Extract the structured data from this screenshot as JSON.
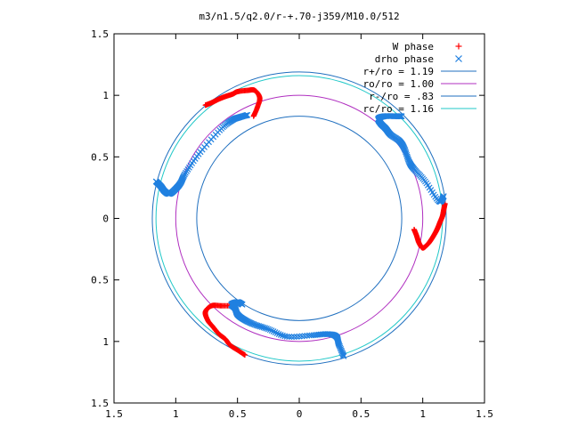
{
  "chart_data": {
    "type": "scatter",
    "title": "m3/n1.5/q2.0/r-+.70-j359/M10.0/512",
    "xlabel": "",
    "ylabel": "",
    "xlim": [
      -1.5,
      1.5
    ],
    "ylim": [
      -1.5,
      1.5
    ],
    "x_ticks": [
      -1.5,
      -1,
      -0.5,
      0,
      0.5,
      1,
      1.5
    ],
    "y_ticks": [
      -1.5,
      -1,
      -0.5,
      0,
      0.5,
      1,
      1.5
    ],
    "x_tick_labels": [
      "1.5",
      "1",
      "0.5",
      "0",
      "0.5",
      "1",
      "1.5"
    ],
    "y_tick_labels": [
      "1.5",
      "1",
      "0.5",
      "0",
      "0.5",
      "1",
      "1.5"
    ],
    "grid": false,
    "legend_position": "top-right",
    "circles": [
      {
        "name": "r+/ro = 1.19",
        "r": 1.19,
        "color": "#1f6fbf"
      },
      {
        "name": "ro/ro = 1.00",
        "r": 1.0,
        "color": "#b02fc0"
      },
      {
        "name": "r-/ro = .83",
        "r": 0.83,
        "color": "#1f6fbf"
      },
      {
        "name": "rc/ro = 1.16",
        "r": 1.16,
        "color": "#20c8c8"
      }
    ],
    "series": [
      {
        "name": "W phase",
        "marker": "plus",
        "color": "#ff0000",
        "arms": [
          {
            "phase_deg": 0,
            "points": [
              [
                1.18,
                0.12
              ],
              [
                1.17,
                0.07
              ],
              [
                1.16,
                0.02
              ],
              [
                1.14,
                -0.03
              ],
              [
                1.12,
                -0.08
              ],
              [
                1.1,
                -0.12
              ],
              [
                1.07,
                -0.17
              ],
              [
                1.04,
                -0.21
              ],
              [
                1.0,
                -0.24
              ],
              [
                0.97,
                -0.2
              ],
              [
                0.95,
                -0.14
              ],
              [
                0.93,
                -0.09
              ]
            ]
          },
          {
            "phase_deg": 120,
            "points": [
              [
                -0.76,
                0.92
              ],
              [
                -0.71,
                0.94
              ],
              [
                -0.65,
                0.97
              ],
              [
                -0.6,
                0.99
              ],
              [
                -0.54,
                1.01
              ],
              [
                -0.5,
                1.03
              ],
              [
                -0.42,
                1.04
              ],
              [
                -0.36,
                1.04
              ],
              [
                -0.32,
                0.98
              ],
              [
                -0.34,
                0.9
              ],
              [
                -0.37,
                0.83
              ]
            ]
          },
          {
            "phase_deg": 240,
            "points": [
              [
                -0.44,
                -1.11
              ],
              [
                -0.5,
                -1.07
              ],
              [
                -0.56,
                -1.03
              ],
              [
                -0.6,
                -0.98
              ],
              [
                -0.65,
                -0.94
              ],
              [
                -0.7,
                -0.88
              ],
              [
                -0.74,
                -0.83
              ],
              [
                -0.76,
                -0.76
              ],
              [
                -0.71,
                -0.71
              ],
              [
                -0.63,
                -0.71
              ],
              [
                -0.54,
                -0.71
              ]
            ]
          }
        ]
      },
      {
        "name": "drho phase",
        "marker": "cross",
        "color": "#2080e0",
        "arms": [
          {
            "phase_deg": 0,
            "points": [
              [
                1.17,
                0.18
              ],
              [
                1.13,
                0.14
              ],
              [
                1.02,
                0.3
              ],
              [
                0.93,
                0.4
              ],
              [
                0.89,
                0.46
              ],
              [
                0.85,
                0.57
              ],
              [
                0.81,
                0.63
              ],
              [
                0.74,
                0.68
              ],
              [
                0.7,
                0.73
              ],
              [
                0.66,
                0.77
              ],
              [
                0.64,
                0.81
              ],
              [
                0.69,
                0.83
              ],
              [
                0.78,
                0.83
              ],
              [
                0.83,
                0.83
              ]
            ]
          },
          {
            "phase_deg": 120,
            "points": [
              [
                -0.42,
                0.84
              ],
              [
                -0.49,
                0.82
              ],
              [
                -0.54,
                0.8
              ],
              [
                -0.63,
                0.73
              ],
              [
                -0.8,
                0.54
              ],
              [
                -0.92,
                0.37
              ],
              [
                -0.96,
                0.29
              ],
              [
                -1.0,
                0.24
              ],
              [
                -1.05,
                0.2
              ],
              [
                -1.09,
                0.22
              ],
              [
                -1.12,
                0.26
              ],
              [
                -1.16,
                0.3
              ]
            ]
          },
          {
            "phase_deg": 240,
            "points": [
              [
                0.36,
                -1.12
              ],
              [
                0.32,
                -1.02
              ],
              [
                0.3,
                -0.96
              ],
              [
                0.23,
                -0.94
              ],
              [
                0.1,
                -0.95
              ],
              [
                -0.1,
                -0.96
              ],
              [
                -0.25,
                -0.9
              ],
              [
                -0.37,
                -0.86
              ],
              [
                -0.45,
                -0.82
              ],
              [
                -0.5,
                -0.78
              ],
              [
                -0.52,
                -0.73
              ],
              [
                -0.55,
                -0.7
              ],
              [
                -0.5,
                -0.68
              ],
              [
                -0.46,
                -0.7
              ]
            ]
          }
        ]
      }
    ]
  }
}
